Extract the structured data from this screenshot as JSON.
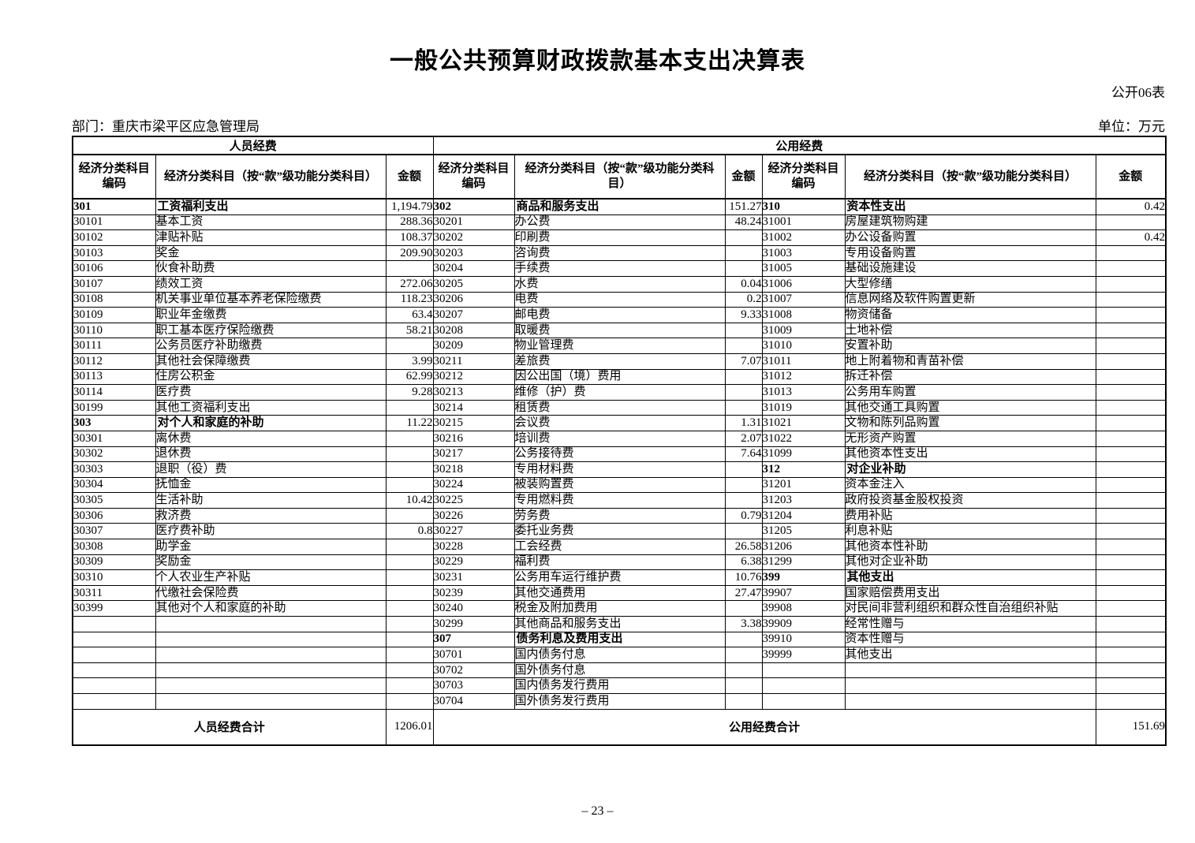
{
  "page": {
    "title": "一般公共预算财政拨款基本支出决算表",
    "form_number": "公开06表",
    "department": "部门：重庆市梁平区应急管理局",
    "unit": "单位：万元",
    "page_number": "– 23 –"
  },
  "table": {
    "group_headers": [
      "人员经费",
      "公用经费"
    ],
    "columns": [
      "经济分类科目\n编码",
      "经济分类科目（按“款”级功能分类科目）",
      "金额",
      "经济分类科目\n编码",
      "经济分类科目（按“款”级功能分类科\n目）",
      "金额",
      "经济分类科目\n编码",
      "经济分类科目（按“款”级功能分类科目）",
      "金额"
    ],
    "row_count": 33,
    "sections": [
      {
        "name": "人员经费",
        "rows": [
          {
            "code": "301",
            "name": "工资福利支出",
            "amount": "1,194.79",
            "category": true
          },
          {
            "code": "30101",
            "name": "基本工资",
            "amount": "288.36"
          },
          {
            "code": "30102",
            "name": "津贴补贴",
            "amount": "108.37"
          },
          {
            "code": "30103",
            "name": "奖金",
            "amount": "209.90"
          },
          {
            "code": "30106",
            "name": "伙食补助费",
            "amount": ""
          },
          {
            "code": "30107",
            "name": "绩效工资",
            "amount": "272.06"
          },
          {
            "code": "30108",
            "name": "机关事业单位基本养老保险缴费",
            "amount": "118.23"
          },
          {
            "code": "30109",
            "name": "职业年金缴费",
            "amount": "63.4"
          },
          {
            "code": "30110",
            "name": "职工基本医疗保险缴费",
            "amount": "58.21"
          },
          {
            "code": "30111",
            "name": "公务员医疗补助缴费",
            "amount": ""
          },
          {
            "code": "30112",
            "name": "其他社会保障缴费",
            "amount": "3.99"
          },
          {
            "code": "30113",
            "name": "住房公积金",
            "amount": "62.99"
          },
          {
            "code": "30114",
            "name": "医疗费",
            "amount": "9.28"
          },
          {
            "code": "30199",
            "name": "其他工资福利支出",
            "amount": ""
          },
          {
            "code": "303",
            "name": "对个人和家庭的补助",
            "amount": "11.22",
            "category": true
          },
          {
            "code": "30301",
            "name": "离休费",
            "amount": ""
          },
          {
            "code": "30302",
            "name": "退休费",
            "amount": ""
          },
          {
            "code": "30303",
            "name": "退职（役）费",
            "amount": ""
          },
          {
            "code": "30304",
            "name": "抚恤金",
            "amount": ""
          },
          {
            "code": "30305",
            "name": "生活补助",
            "amount": "10.42"
          },
          {
            "code": "30306",
            "name": "救济费",
            "amount": ""
          },
          {
            "code": "30307",
            "name": "医疗费补助",
            "amount": "0.8"
          },
          {
            "code": "30308",
            "name": "助学金",
            "amount": ""
          },
          {
            "code": "30309",
            "name": "奖励金",
            "amount": ""
          },
          {
            "code": "30310",
            "name": "个人农业生产补贴",
            "amount": ""
          },
          {
            "code": "30311",
            "name": "代缴社会保险费",
            "amount": ""
          },
          {
            "code": "30399",
            "name": "其他对个人和家庭的补助",
            "amount": ""
          }
        ]
      },
      {
        "name": "公用经费-1",
        "rows": [
          {
            "code": "302",
            "name": "商品和服务支出",
            "amount": "151.27",
            "category": true
          },
          {
            "code": "30201",
            "name": "办公费",
            "amount": "48.24"
          },
          {
            "code": "30202",
            "name": "印刷费",
            "amount": ""
          },
          {
            "code": "30203",
            "name": "咨询费",
            "amount": ""
          },
          {
            "code": "30204",
            "name": "手续费",
            "amount": ""
          },
          {
            "code": "30205",
            "name": "水费",
            "amount": "0.04"
          },
          {
            "code": "30206",
            "name": "电费",
            "amount": "0.2"
          },
          {
            "code": "30207",
            "name": "邮电费",
            "amount": "9.33"
          },
          {
            "code": "30208",
            "name": "取暖费",
            "amount": ""
          },
          {
            "code": "30209",
            "name": "物业管理费",
            "amount": ""
          },
          {
            "code": "30211",
            "name": "差旅费",
            "amount": "7.07"
          },
          {
            "code": "30212",
            "name": "因公出国（境）费用",
            "amount": ""
          },
          {
            "code": "30213",
            "name": "维修（护）费",
            "amount": ""
          },
          {
            "code": "30214",
            "name": "租赁费",
            "amount": ""
          },
          {
            "code": "30215",
            "name": "会议费",
            "amount": "1.31"
          },
          {
            "code": "30216",
            "name": "培训费",
            "amount": "2.07"
          },
          {
            "code": "30217",
            "name": "公务接待费",
            "amount": "7.64"
          },
          {
            "code": "30218",
            "name": "专用材料费",
            "amount": ""
          },
          {
            "code": "30224",
            "name": "被装购置费",
            "amount": ""
          },
          {
            "code": "30225",
            "name": "专用燃料费",
            "amount": ""
          },
          {
            "code": "30226",
            "name": "劳务费",
            "amount": "0.79"
          },
          {
            "code": "30227",
            "name": "委托业务费",
            "amount": ""
          },
          {
            "code": "30228",
            "name": "工会经费",
            "amount": "26.58"
          },
          {
            "code": "30229",
            "name": "福利费",
            "amount": "6.38"
          },
          {
            "code": "30231",
            "name": "公务用车运行维护费",
            "amount": "10.76"
          },
          {
            "code": "30239",
            "name": "其他交通费用",
            "amount": "27.47"
          },
          {
            "code": "30240",
            "name": "税金及附加费用",
            "amount": ""
          },
          {
            "code": "30299",
            "name": "其他商品和服务支出",
            "amount": "3.38"
          },
          {
            "code": "307",
            "name": "债务利息及费用支出",
            "amount": "",
            "category": true
          },
          {
            "code": "30701",
            "name": "国内债务付息",
            "amount": ""
          },
          {
            "code": "30702",
            "name": "国外债务付息",
            "amount": ""
          },
          {
            "code": "30703",
            "name": "国内债务发行费用",
            "amount": ""
          },
          {
            "code": "30704",
            "name": "国外债务发行费用",
            "amount": ""
          }
        ]
      },
      {
        "name": "公用经费-2",
        "rows": [
          {
            "code": "310",
            "name": "资本性支出",
            "amount": "0.42",
            "category": true
          },
          {
            "code": "31001",
            "name": "房屋建筑物购建",
            "amount": ""
          },
          {
            "code": "31002",
            "name": "办公设备购置",
            "amount": "0.42"
          },
          {
            "code": "31003",
            "name": "专用设备购置",
            "amount": ""
          },
          {
            "code": "31005",
            "name": "基础设施建设",
            "amount": ""
          },
          {
            "code": "31006",
            "name": "大型修缮",
            "amount": ""
          },
          {
            "code": "31007",
            "name": "信息网络及软件购置更新",
            "amount": ""
          },
          {
            "code": "31008",
            "name": "物资储备",
            "amount": ""
          },
          {
            "code": "31009",
            "name": "土地补偿",
            "amount": ""
          },
          {
            "code": "31010",
            "name": "安置补助",
            "amount": ""
          },
          {
            "code": "31011",
            "name": "地上附着物和青苗补偿",
            "amount": ""
          },
          {
            "code": "31012",
            "name": "拆迁补偿",
            "amount": ""
          },
          {
            "code": "31013",
            "name": "公务用车购置",
            "amount": ""
          },
          {
            "code": "31019",
            "name": "其他交通工具购置",
            "amount": ""
          },
          {
            "code": "31021",
            "name": "文物和陈列品购置",
            "amount": ""
          },
          {
            "code": "31022",
            "name": "无形资产购置",
            "amount": ""
          },
          {
            "code": "31099",
            "name": "其他资本性支出",
            "amount": ""
          },
          {
            "code": "312",
            "name": "对企业补助",
            "amount": "",
            "category": true
          },
          {
            "code": "31201",
            "name": "资本金注入",
            "amount": ""
          },
          {
            "code": "31203",
            "name": "政府投资基金股权投资",
            "amount": ""
          },
          {
            "code": "31204",
            "name": "费用补贴",
            "amount": ""
          },
          {
            "code": "31205",
            "name": "利息补贴",
            "amount": ""
          },
          {
            "code": "31206",
            "name": "其他资本性补助",
            "amount": ""
          },
          {
            "code": "31299",
            "name": "其他对企业补助",
            "amount": ""
          },
          {
            "code": "399",
            "name": "其他支出",
            "amount": "",
            "category": true
          },
          {
            "code": "39907",
            "name": "国家赔偿费用支出",
            "amount": ""
          },
          {
            "code": "39908",
            "name": "对民间非营利组织和群众性自治组织补贴",
            "amount": ""
          },
          {
            "code": "39909",
            "name": "经常性赠与",
            "amount": ""
          },
          {
            "code": "39910",
            "name": "资本性赠与",
            "amount": ""
          },
          {
            "code": "39999",
            "name": "其他支出",
            "amount": ""
          }
        ]
      }
    ],
    "footer": {
      "personnel_label": "人员经费合计",
      "personnel_total": "1206.01",
      "public_label": "公用经费合计",
      "public_total": "151.69"
    }
  }
}
